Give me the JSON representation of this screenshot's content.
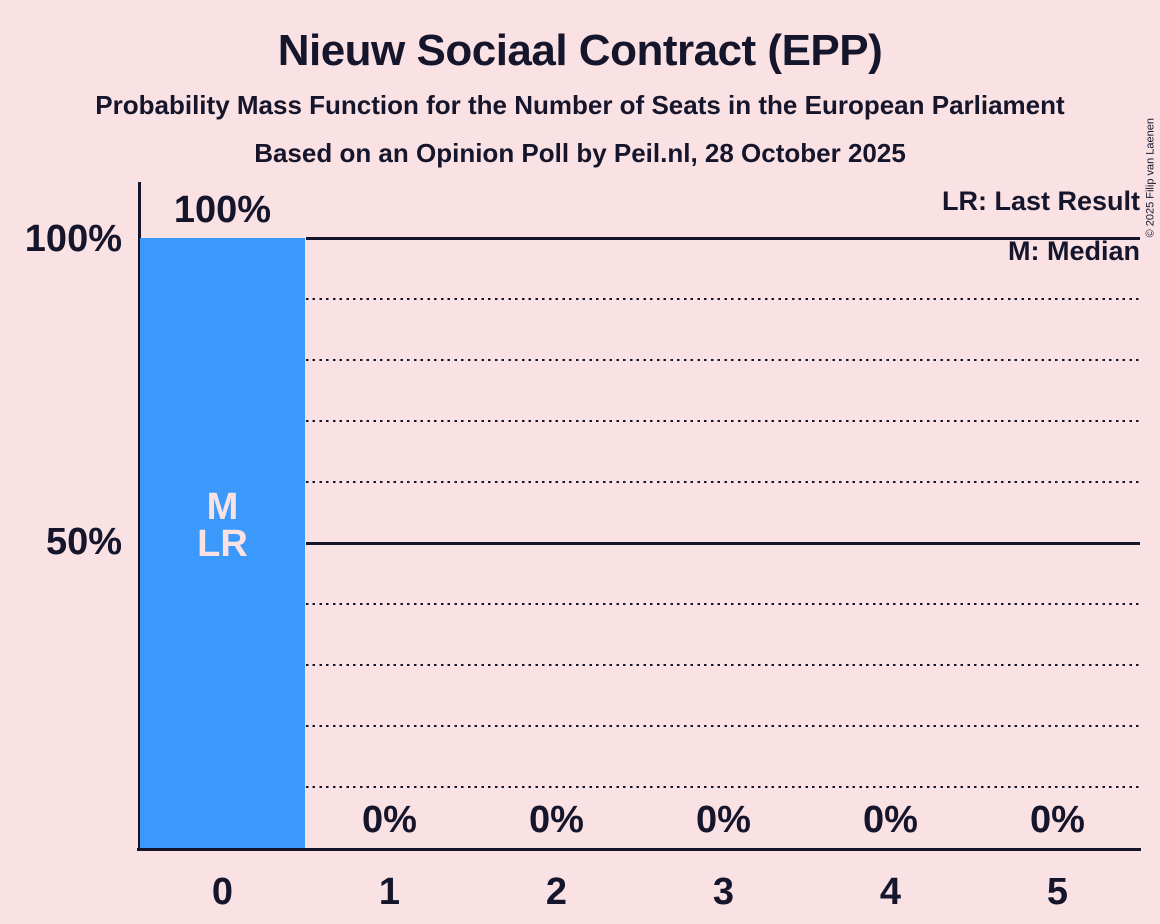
{
  "header": {
    "title": "Nieuw Sociaal Contract (EPP)",
    "subtitle": "Probability Mass Function for the Number of Seats in the European Parliament",
    "poll_line": "Based on an Opinion Poll by Peil.nl, 28 October 2025"
  },
  "legend": {
    "last_result": "LR: Last Result",
    "median": "M: Median"
  },
  "y_axis": {
    "top_label": "100%",
    "mid_label": "50%"
  },
  "copyright": "© 2025 Filip van Laenen",
  "colors": {
    "background": "#fae2e4",
    "bar": "#3b99fb",
    "ink": "#15152b"
  },
  "chart_data": {
    "type": "bar",
    "title": "Nieuw Sociaal Contract (EPP)",
    "subtitle": "Probability Mass Function for the Number of Seats in the European Parliament",
    "source_line": "Based on an Opinion Poll by Peil.nl, 28 October 2025",
    "categories": [
      "0",
      "1",
      "2",
      "3",
      "4",
      "5"
    ],
    "values": [
      100,
      0,
      0,
      0,
      0,
      0
    ],
    "value_labels": [
      "100%",
      "0%",
      "0%",
      "0%",
      "0%",
      "0%"
    ],
    "ylim": [
      0,
      100
    ],
    "y_tick_labels": {
      "100": "100%",
      "50": "50%"
    },
    "gridlines": {
      "solid": [
        100,
        50
      ],
      "dotted": [
        90,
        80,
        70,
        60,
        40,
        30,
        20,
        10
      ]
    },
    "grid_on": true,
    "legend_position": "top-right",
    "legend_entries": [
      "LR: Last Result",
      "M: Median"
    ],
    "annotations": [
      {
        "category": "0",
        "lines": [
          "M",
          "LR"
        ]
      }
    ]
  }
}
